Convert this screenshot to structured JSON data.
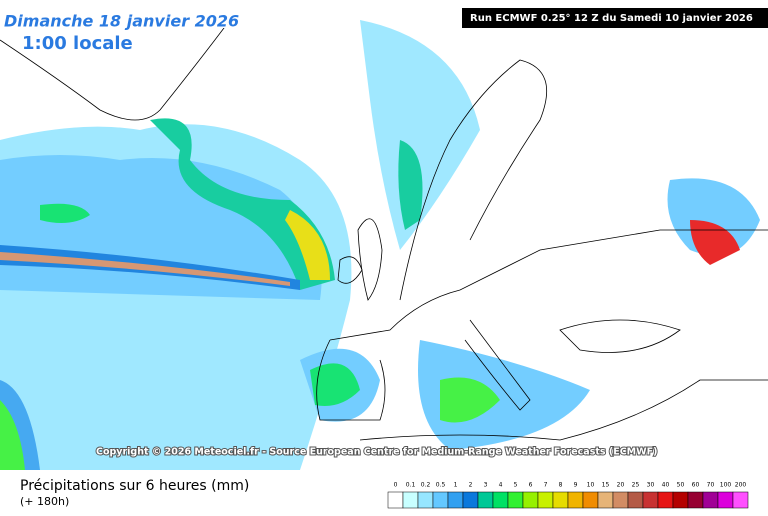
{
  "header": {
    "date": "Dimanche 18 janvier 2026",
    "time": "1:00 locale",
    "run": "Run ECMWF 0.25° 12 Z du Samedi 10 janvier 2026"
  },
  "copyright": "Copyright © 2026 Meteociel.fr - Source European Centre for Medium-Range Weather Forecasts (ECMWF)",
  "footer": {
    "title": "Précipitations sur 6 heures (mm)",
    "lead": "(+ 180h)"
  },
  "legend": [
    {
      "label": "0",
      "color": "#ffffff"
    },
    {
      "label": "0.1",
      "color": "#c8ffff"
    },
    {
      "label": "0.2",
      "color": "#96e6ff"
    },
    {
      "label": "0.5",
      "color": "#64c8ff"
    },
    {
      "label": "1",
      "color": "#32a0f0"
    },
    {
      "label": "2",
      "color": "#0a78dc"
    },
    {
      "label": "3",
      "color": "#00c896"
    },
    {
      "label": "4",
      "color": "#00e164"
    },
    {
      "label": "5",
      "color": "#32f032"
    },
    {
      "label": "6",
      "color": "#96f000"
    },
    {
      "label": "7",
      "color": "#c8f000"
    },
    {
      "label": "8",
      "color": "#e6dc00"
    },
    {
      "label": "9",
      "color": "#f0b400"
    },
    {
      "label": "10",
      "color": "#f08c00"
    },
    {
      "label": "15",
      "color": "#e6b478"
    },
    {
      "label": "20",
      "color": "#d28c64"
    },
    {
      "label": "25",
      "color": "#b45a46"
    },
    {
      "label": "30",
      "color": "#c83232"
    },
    {
      "label": "40",
      "color": "#e61414"
    },
    {
      "label": "50",
      "color": "#b40000"
    },
    {
      "label": "60",
      "color": "#960032"
    },
    {
      "label": "70",
      "color": "#a00096"
    },
    {
      "label": "100",
      "color": "#dc00dc"
    },
    {
      "label": "200",
      "color": "#ff50ff"
    }
  ]
}
